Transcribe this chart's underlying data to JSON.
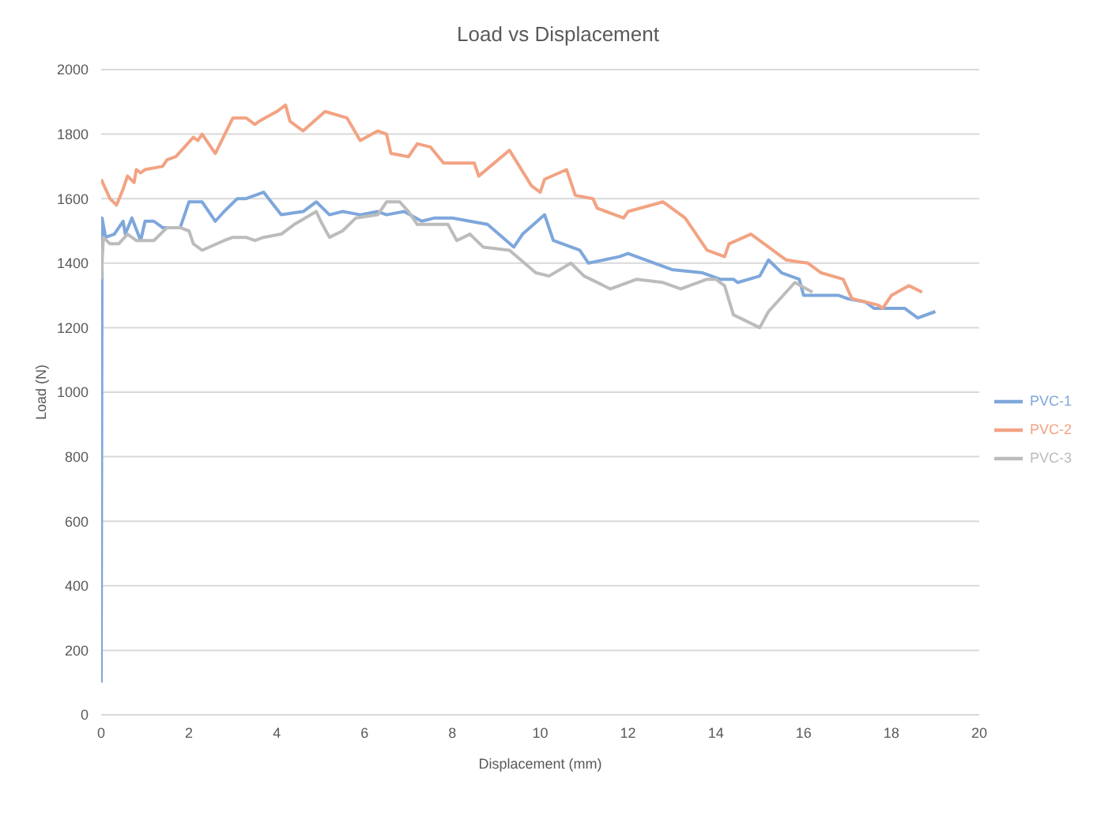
{
  "chart_data": {
    "type": "line",
    "title": "Load vs Displacement",
    "xlabel": "Displacement (mm)",
    "ylabel": "Load (N)",
    "xlim": [
      0,
      20
    ],
    "xticks": [
      0,
      2,
      4,
      6,
      8,
      10,
      12,
      14,
      16,
      18,
      20
    ],
    "ylim": [
      0,
      2000
    ],
    "yticks": [
      0,
      200,
      400,
      600,
      800,
      1000,
      1200,
      1400,
      1600,
      1800,
      2000
    ],
    "grid": "y",
    "legend": "right",
    "marker": "none",
    "line_style": "solid",
    "series": [
      {
        "name": "PVC-1",
        "color": "#7ea7db",
        "x": [
          0,
          0.02,
          0.1,
          0.3,
          0.5,
          0.55,
          0.7,
          0.9,
          1.0,
          1.2,
          1.4,
          1.8,
          2.0,
          2.3,
          2.6,
          2.8,
          3.1,
          3.3,
          3.7,
          4.1,
          4.6,
          4.9,
          5.2,
          5.5,
          5.9,
          6.3,
          6.5,
          6.9,
          7.3,
          7.6,
          8.0,
          8.4,
          8.8,
          9.4,
          9.6,
          10.1,
          10.3,
          10.9,
          11.1,
          11.8,
          12.0,
          13.0,
          13.7,
          14.1,
          14.4,
          14.5,
          15.0,
          15.2,
          15.5,
          15.9,
          16.0,
          16.4,
          16.8,
          17.0,
          17.4,
          17.6,
          18.3,
          18.6,
          19.0
        ],
        "values": [
          100,
          1540,
          1480,
          1490,
          1530,
          1490,
          1540,
          1470,
          1530,
          1530,
          1510,
          1510,
          1590,
          1590,
          1530,
          1560,
          1600,
          1600,
          1620,
          1550,
          1560,
          1590,
          1550,
          1560,
          1550,
          1560,
          1550,
          1560,
          1530,
          1540,
          1540,
          1530,
          1520,
          1450,
          1490,
          1550,
          1470,
          1440,
          1400,
          1420,
          1430,
          1380,
          1370,
          1350,
          1350,
          1340,
          1360,
          1410,
          1370,
          1350,
          1300,
          1300,
          1300,
          1290,
          1280,
          1260,
          1260,
          1230,
          1250
        ]
      },
      {
        "name": "PVC-2",
        "color": "#f2a383",
        "x": [
          0,
          0.2,
          0.35,
          0.5,
          0.6,
          0.75,
          0.8,
          0.9,
          1.0,
          1.4,
          1.5,
          1.7,
          1.9,
          2.1,
          2.2,
          2.3,
          2.6,
          3.0,
          3.3,
          3.5,
          3.6,
          4.0,
          4.2,
          4.3,
          4.6,
          5.1,
          5.6,
          5.9,
          6.3,
          6.5,
          6.6,
          7.0,
          7.2,
          7.5,
          7.8,
          8.5,
          8.6,
          9.3,
          9.8,
          10.0,
          10.1,
          10.6,
          10.8,
          11.2,
          11.3,
          11.7,
          11.9,
          12.0,
          12.8,
          13.3,
          13.8,
          14.2,
          14.3,
          14.8,
          15.2,
          15.4,
          15.6,
          16.1,
          16.4,
          16.9,
          17.1,
          17.7,
          17.8,
          18.0,
          18.4,
          18.7
        ],
        "values": [
          1660,
          1600,
          1580,
          1630,
          1670,
          1650,
          1690,
          1680,
          1690,
          1700,
          1720,
          1730,
          1760,
          1790,
          1780,
          1800,
          1740,
          1850,
          1850,
          1830,
          1840,
          1870,
          1890,
          1840,
          1810,
          1870,
          1850,
          1780,
          1810,
          1800,
          1740,
          1730,
          1770,
          1760,
          1710,
          1710,
          1670,
          1750,
          1640,
          1620,
          1660,
          1690,
          1610,
          1600,
          1570,
          1550,
          1540,
          1560,
          1590,
          1540,
          1440,
          1420,
          1460,
          1490,
          1450,
          1430,
          1410,
          1400,
          1370,
          1350,
          1290,
          1270,
          1260,
          1300,
          1330,
          1310
        ]
      },
      {
        "name": "PVC-3",
        "color": "#bcbcbc",
        "x": [
          0,
          0.05,
          0.2,
          0.4,
          0.6,
          0.8,
          1.2,
          1.5,
          1.8,
          2.0,
          2.1,
          2.3,
          2.8,
          3.0,
          3.3,
          3.5,
          3.7,
          4.1,
          4.4,
          4.9,
          5.0,
          5.2,
          5.5,
          5.8,
          6.3,
          6.5,
          6.8,
          7.0,
          7.2,
          7.9,
          8.1,
          8.4,
          8.7,
          9.3,
          9.9,
          10.2,
          10.7,
          11.0,
          11.6,
          12.2,
          12.8,
          13.2,
          13.8,
          14.0,
          14.2,
          14.4,
          15.0,
          15.2,
          15.8,
          16.2
        ],
        "values": [
          1350,
          1480,
          1460,
          1460,
          1490,
          1470,
          1470,
          1510,
          1510,
          1500,
          1460,
          1440,
          1470,
          1480,
          1480,
          1470,
          1480,
          1490,
          1520,
          1560,
          1530,
          1480,
          1500,
          1540,
          1550,
          1590,
          1590,
          1560,
          1520,
          1520,
          1470,
          1490,
          1450,
          1440,
          1370,
          1360,
          1400,
          1360,
          1320,
          1350,
          1340,
          1320,
          1350,
          1350,
          1330,
          1240,
          1200,
          1250,
          1340,
          1310
        ]
      }
    ]
  }
}
